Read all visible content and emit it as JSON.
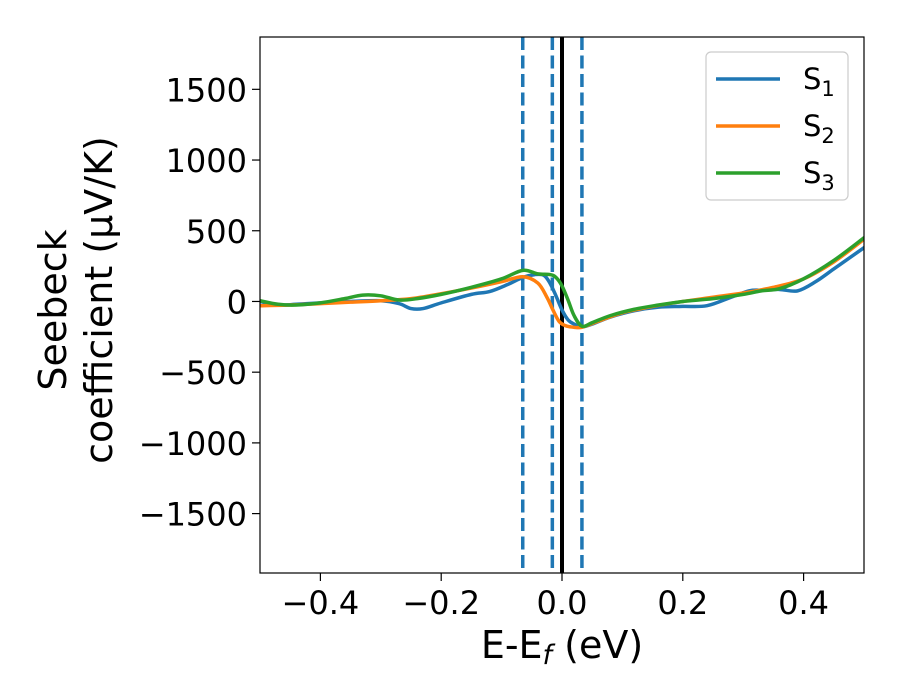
{
  "chart_data": {
    "type": "line",
    "title": "",
    "xlabel": "E-E_f (eV)",
    "xlabel_parts": {
      "main": "E-E",
      "sub": "f",
      "tail": " (eV)"
    },
    "ylabel_lines": [
      "Seebeck",
      "coefficient  (μV/K)"
    ],
    "xlim": [
      -0.5,
      0.5
    ],
    "ylim": [
      -1920,
      1870
    ],
    "xticks": [
      -0.4,
      -0.2,
      0.0,
      0.2,
      0.4
    ],
    "xtick_labels": [
      "−0.4",
      "−0.2",
      "0.0",
      "0.2",
      "0.4"
    ],
    "yticks": [
      -1500,
      -1000,
      -500,
      0,
      500,
      1000,
      1500
    ],
    "ytick_labels": [
      "−1500",
      "−1000",
      "−500",
      "0",
      "500",
      "1000",
      "1500"
    ],
    "grid": false,
    "legend_position": "top-right",
    "series": [
      {
        "name": "S1",
        "label_main": "S",
        "label_sub": "1",
        "color": "#1f77b4",
        "x": [
          -0.5,
          -0.47,
          -0.44,
          -0.4,
          -0.35,
          -0.3,
          -0.27,
          -0.25,
          -0.23,
          -0.2,
          -0.15,
          -0.12,
          -0.09,
          -0.065,
          -0.045,
          -0.03,
          -0.02,
          -0.01,
          0.0,
          0.01,
          0.02,
          0.033,
          0.05,
          0.08,
          0.12,
          0.16,
          0.2,
          0.24,
          0.28,
          0.31,
          0.33,
          0.36,
          0.39,
          0.42,
          0.45,
          0.48,
          0.5
        ],
        "y": [
          0,
          -25,
          -20,
          -10,
          0,
          5,
          -15,
          -50,
          -50,
          -10,
          50,
          70,
          120,
          170,
          190,
          185,
          130,
          40,
          -60,
          -130,
          -160,
          -180,
          -160,
          -110,
          -65,
          -40,
          -35,
          -30,
          30,
          75,
          80,
          85,
          75,
          140,
          230,
          320,
          380
        ]
      },
      {
        "name": "S2",
        "label_main": "S",
        "label_sub": "2",
        "color": "#ff7f0e",
        "x": [
          -0.5,
          -0.45,
          -0.4,
          -0.35,
          -0.3,
          -0.25,
          -0.2,
          -0.15,
          -0.1,
          -0.065,
          -0.04,
          -0.025,
          -0.015,
          -0.005,
          0.005,
          0.015,
          0.025,
          0.035,
          0.06,
          0.1,
          0.15,
          0.2,
          0.25,
          0.3,
          0.35,
          0.4,
          0.45,
          0.5
        ],
        "y": [
          -30,
          -25,
          -15,
          -5,
          5,
          20,
          55,
          95,
          140,
          175,
          130,
          30,
          -60,
          -140,
          -170,
          -180,
          -185,
          -180,
          -140,
          -80,
          -35,
          0,
          30,
          60,
          100,
          160,
          280,
          440
        ]
      },
      {
        "name": "S3",
        "label_main": "S",
        "label_sub": "3",
        "color": "#2ca02c",
        "x": [
          -0.5,
          -0.47,
          -0.44,
          -0.4,
          -0.36,
          -0.33,
          -0.3,
          -0.27,
          -0.24,
          -0.2,
          -0.15,
          -0.1,
          -0.065,
          -0.04,
          -0.02,
          -0.01,
          0.0,
          0.01,
          0.02,
          0.033,
          0.05,
          0.08,
          0.12,
          0.16,
          0.2,
          0.25,
          0.3,
          0.33,
          0.36,
          0.4,
          0.45,
          0.5
        ],
        "y": [
          5,
          -20,
          -25,
          -10,
          20,
          45,
          40,
          10,
          20,
          50,
          100,
          160,
          220,
          195,
          190,
          170,
          110,
          10,
          -100,
          -175,
          -150,
          -100,
          -55,
          -25,
          0,
          20,
          50,
          75,
          90,
          160,
          290,
          450
        ]
      }
    ],
    "vlines": [
      {
        "x": -0.065,
        "style": "dashed",
        "color": "#1f77b4"
      },
      {
        "x": -0.016,
        "style": "dashed",
        "color": "#1f77b4"
      },
      {
        "x": 0.0,
        "style": "solid",
        "color": "#000000"
      },
      {
        "x": 0.033,
        "style": "dashed",
        "color": "#1f77b4"
      }
    ]
  }
}
